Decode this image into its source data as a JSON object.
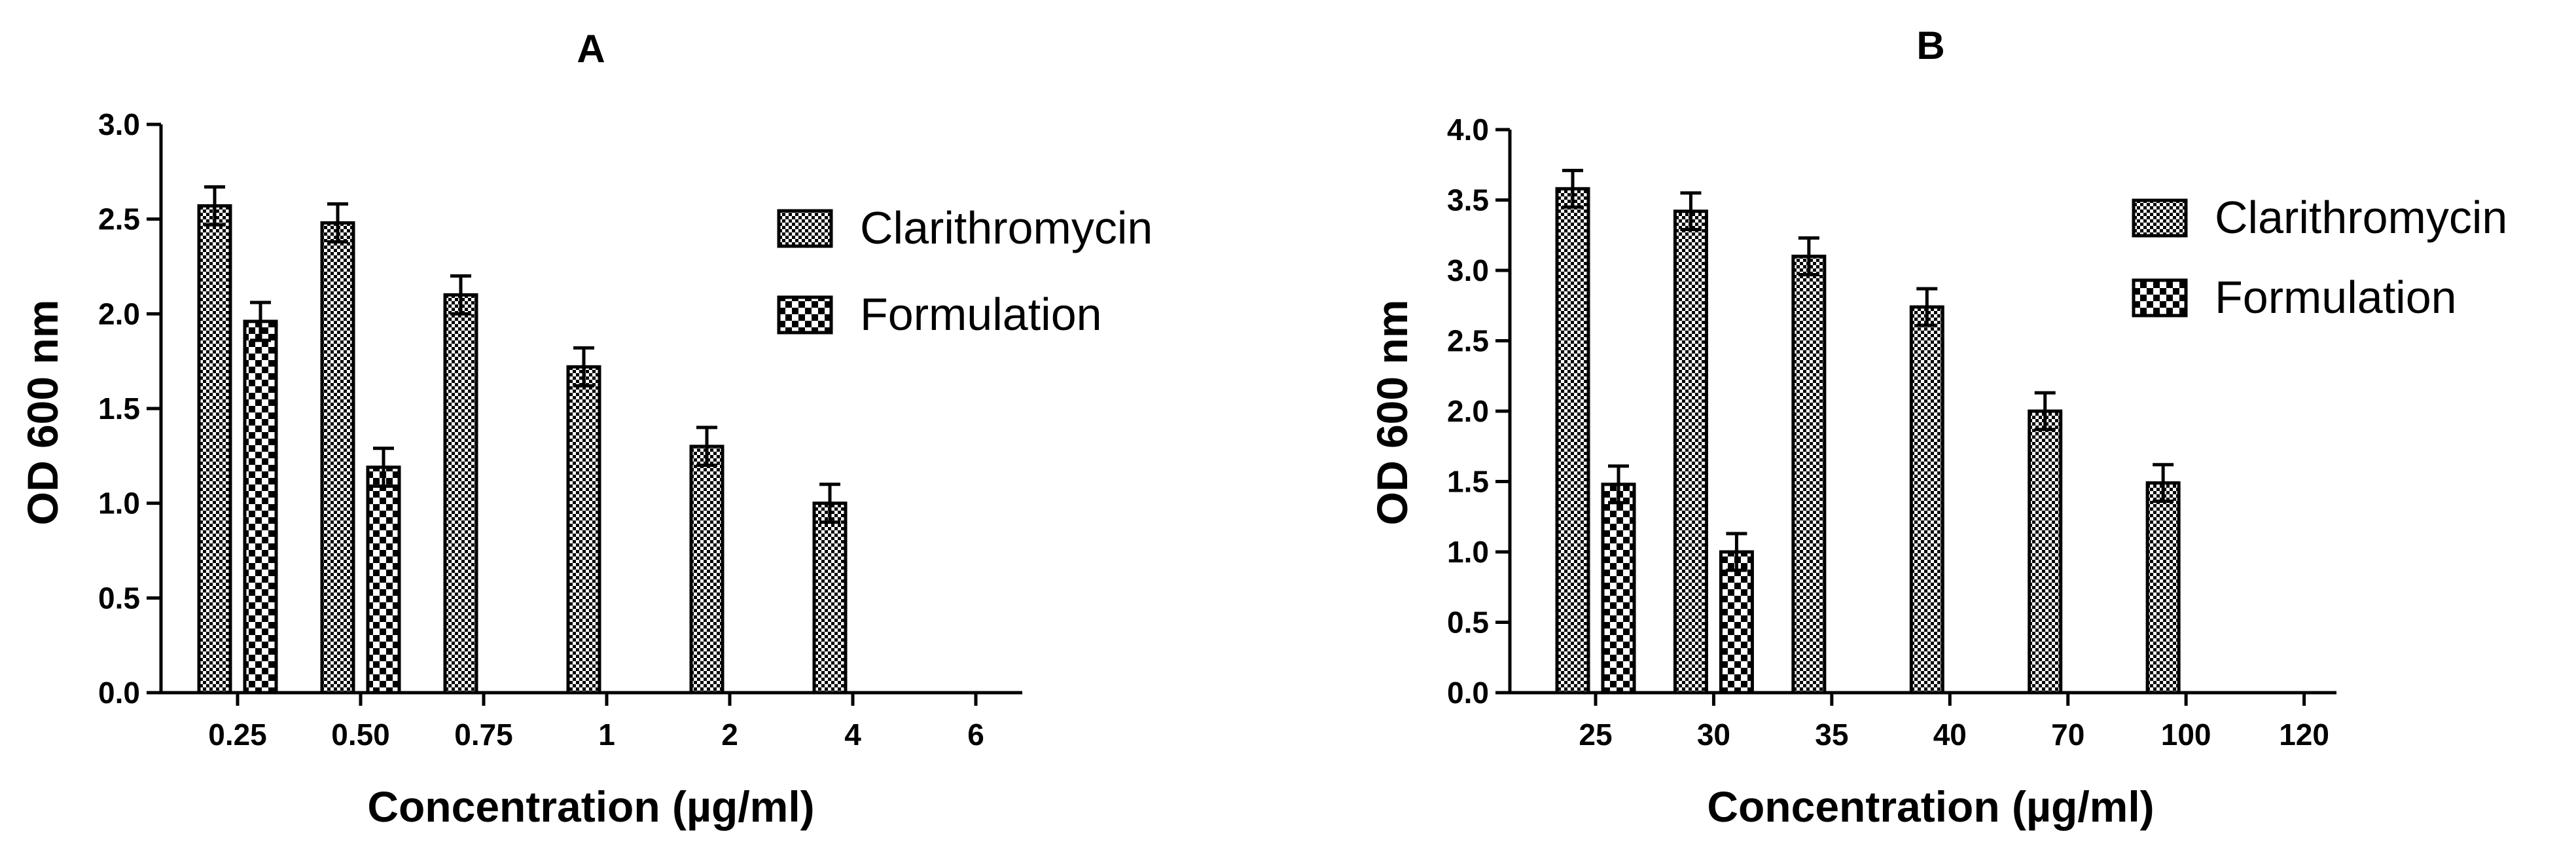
{
  "chart_data": [
    {
      "type": "bar",
      "title": "A",
      "xlabel": "Concentration (µg/ml)",
      "ylabel": "OD 600 nm",
      "ylim": [
        0,
        3.0
      ],
      "yticks": [
        "0.0",
        "0.5",
        "1.0",
        "1.5",
        "2.0",
        "2.5",
        "3.0"
      ],
      "categories": [
        "0.25",
        "0.50",
        "0.75",
        "1",
        "2",
        "4",
        "6"
      ],
      "legend_position": "top-right",
      "grid": false,
      "series": [
        {
          "name": "Clarithromycin",
          "pattern": "fine-checker",
          "values": [
            2.57,
            2.48,
            2.1,
            1.72,
            1.3,
            1.0,
            null
          ],
          "errors": [
            0.1,
            0.1,
            0.1,
            0.1,
            0.1,
            0.1,
            null
          ]
        },
        {
          "name": "Formulation",
          "pattern": "coarse-checker",
          "values": [
            1.96,
            1.19,
            null,
            null,
            null,
            null,
            null
          ],
          "errors": [
            0.1,
            0.1,
            null,
            null,
            null,
            null,
            null
          ]
        }
      ]
    },
    {
      "type": "bar",
      "title": "B",
      "xlabel": "Concentration (µg/ml)",
      "ylabel": "OD 600 nm",
      "ylim": [
        0,
        4.0
      ],
      "yticks": [
        "0.0",
        "0.5",
        "1.0",
        "1.5",
        "2.0",
        "2.5",
        "3.0",
        "3.5",
        "4.0"
      ],
      "categories": [
        "25",
        "30",
        "35",
        "40",
        "70",
        "100",
        "120"
      ],
      "legend_position": "top-right",
      "grid": false,
      "series": [
        {
          "name": "Clarithromycin",
          "pattern": "fine-checker",
          "values": [
            3.58,
            3.42,
            3.1,
            2.74,
            2.0,
            1.49,
            null
          ],
          "errors": [
            0.13,
            0.13,
            0.13,
            0.13,
            0.13,
            0.13,
            null
          ]
        },
        {
          "name": "Formulation",
          "pattern": "coarse-checker",
          "values": [
            1.48,
            1.0,
            null,
            null,
            null,
            null,
            null
          ],
          "errors": [
            0.13,
            0.13,
            null,
            null,
            null,
            null,
            null
          ]
        }
      ]
    }
  ]
}
